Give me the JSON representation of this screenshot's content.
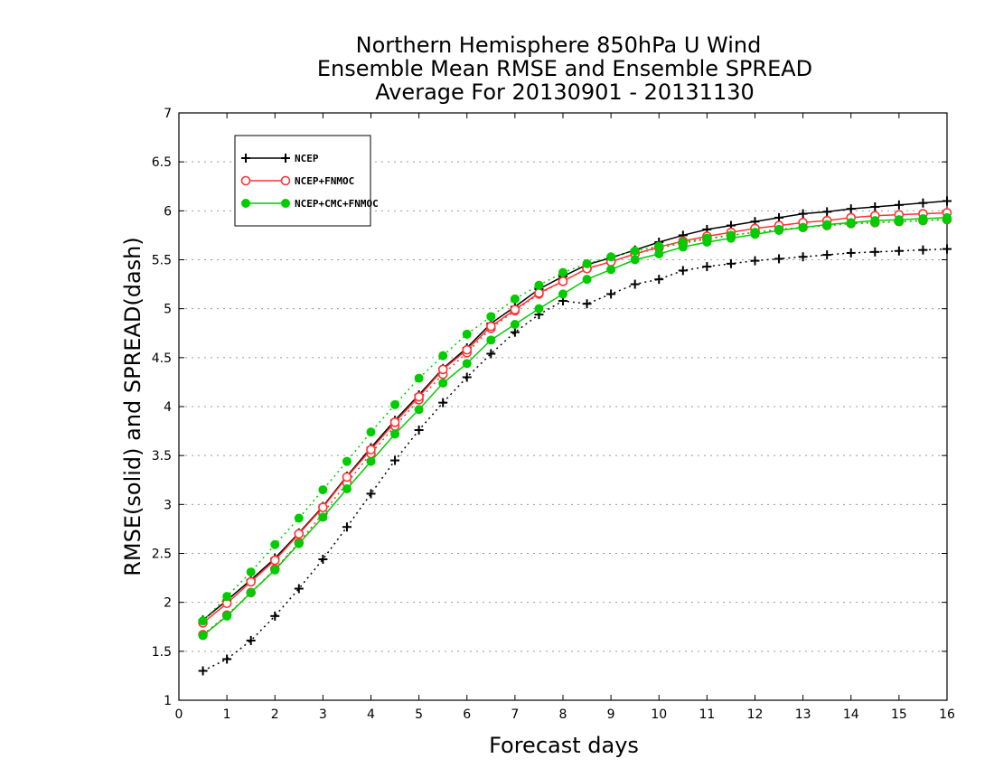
{
  "chart_data": {
    "type": "line",
    "title_lines": [
      "Northern Hemisphere 850hPa U Wind",
      "Ensemble Mean RMSE and Ensemble SPREAD",
      "Average For 20130901 - 20131130"
    ],
    "xlabel": "Forecast days",
    "ylabel": "RMSE(solid) and SPREAD(dash)",
    "xlim": [
      0,
      16
    ],
    "ylim": [
      1,
      7
    ],
    "xticks": [
      "0",
      "1",
      "2",
      "3",
      "4",
      "5",
      "6",
      "7",
      "8",
      "9",
      "10",
      "11",
      "12",
      "13",
      "14",
      "15",
      "16"
    ],
    "yticks": [
      "1",
      "1.5",
      "2",
      "2.5",
      "3",
      "3.5",
      "4",
      "4.5",
      "5",
      "5.5",
      "6",
      "6.5",
      "7"
    ],
    "grid": "horizontal-dotted",
    "legend_position": "top-left",
    "x": [
      0.5,
      1,
      1.5,
      2,
      2.5,
      3,
      3.5,
      4,
      4.5,
      5,
      5.5,
      6,
      6.5,
      7,
      7.5,
      8,
      8.5,
      9,
      9.5,
      10,
      10.5,
      11,
      11.5,
      12,
      12.5,
      13,
      13.5,
      14,
      14.5,
      15,
      15.5,
      16
    ],
    "series": [
      {
        "name": "NCEP",
        "color": "#000000",
        "marker": "plus",
        "rmse": [
          1.82,
          2.02,
          2.23,
          2.45,
          2.71,
          2.98,
          3.29,
          3.58,
          3.86,
          4.12,
          4.39,
          4.6,
          4.85,
          5.02,
          5.2,
          5.33,
          5.45,
          5.52,
          5.6,
          5.68,
          5.75,
          5.81,
          5.85,
          5.89,
          5.93,
          5.97,
          5.99,
          6.02,
          6.04,
          6.06,
          6.08,
          6.1
        ],
        "spread": [
          1.3,
          1.42,
          1.61,
          1.86,
          2.14,
          2.44,
          2.77,
          3.11,
          3.45,
          3.76,
          4.04,
          4.3,
          4.54,
          4.76,
          4.94,
          5.08,
          5.05,
          5.15,
          5.25,
          5.3,
          5.39,
          5.43,
          5.46,
          5.49,
          5.51,
          5.53,
          5.55,
          5.57,
          5.58,
          5.59,
          5.6,
          5.61
        ]
      },
      {
        "name": "NCEP+FNMOC",
        "color": "#ff3333",
        "marker": "circle",
        "rmse": [
          1.79,
          1.99,
          2.21,
          2.43,
          2.7,
          2.97,
          3.28,
          3.56,
          3.84,
          4.1,
          4.38,
          4.58,
          4.82,
          4.99,
          5.16,
          5.28,
          5.41,
          5.48,
          5.56,
          5.63,
          5.69,
          5.74,
          5.78,
          5.82,
          5.85,
          5.88,
          5.9,
          5.93,
          5.95,
          5.96,
          5.97,
          5.98
        ],
        "spread": [
          1.67,
          1.87,
          2.1,
          2.34,
          2.61,
          2.91,
          3.22,
          3.52,
          3.8,
          4.07,
          4.33,
          4.55,
          4.8,
          4.98,
          5.15,
          5.28,
          5.41,
          5.48,
          5.56,
          5.62,
          5.67,
          5.71,
          5.75,
          5.78,
          5.81,
          5.83,
          5.85,
          5.87,
          5.88,
          5.89,
          5.9,
          5.91
        ]
      },
      {
        "name": "NCEP+CMC+FNMOC",
        "color": "#00cc00",
        "marker": "filled-circle",
        "rmse": [
          1.66,
          1.86,
          2.1,
          2.33,
          2.6,
          2.87,
          3.16,
          3.44,
          3.72,
          3.97,
          4.24,
          4.44,
          4.68,
          4.84,
          5.0,
          5.15,
          5.3,
          5.4,
          5.5,
          5.56,
          5.63,
          5.68,
          5.72,
          5.76,
          5.8,
          5.83,
          5.86,
          5.88,
          5.9,
          5.91,
          5.92,
          5.93
        ],
        "spread": [
          1.81,
          2.06,
          2.31,
          2.59,
          2.86,
          3.15,
          3.44,
          3.74,
          4.02,
          4.29,
          4.52,
          4.74,
          4.92,
          5.1,
          5.24,
          5.37,
          5.46,
          5.53,
          5.59,
          5.64,
          5.68,
          5.72,
          5.75,
          5.78,
          5.81,
          5.83,
          5.85,
          5.87,
          5.88,
          5.89,
          5.9,
          5.91
        ]
      }
    ]
  }
}
